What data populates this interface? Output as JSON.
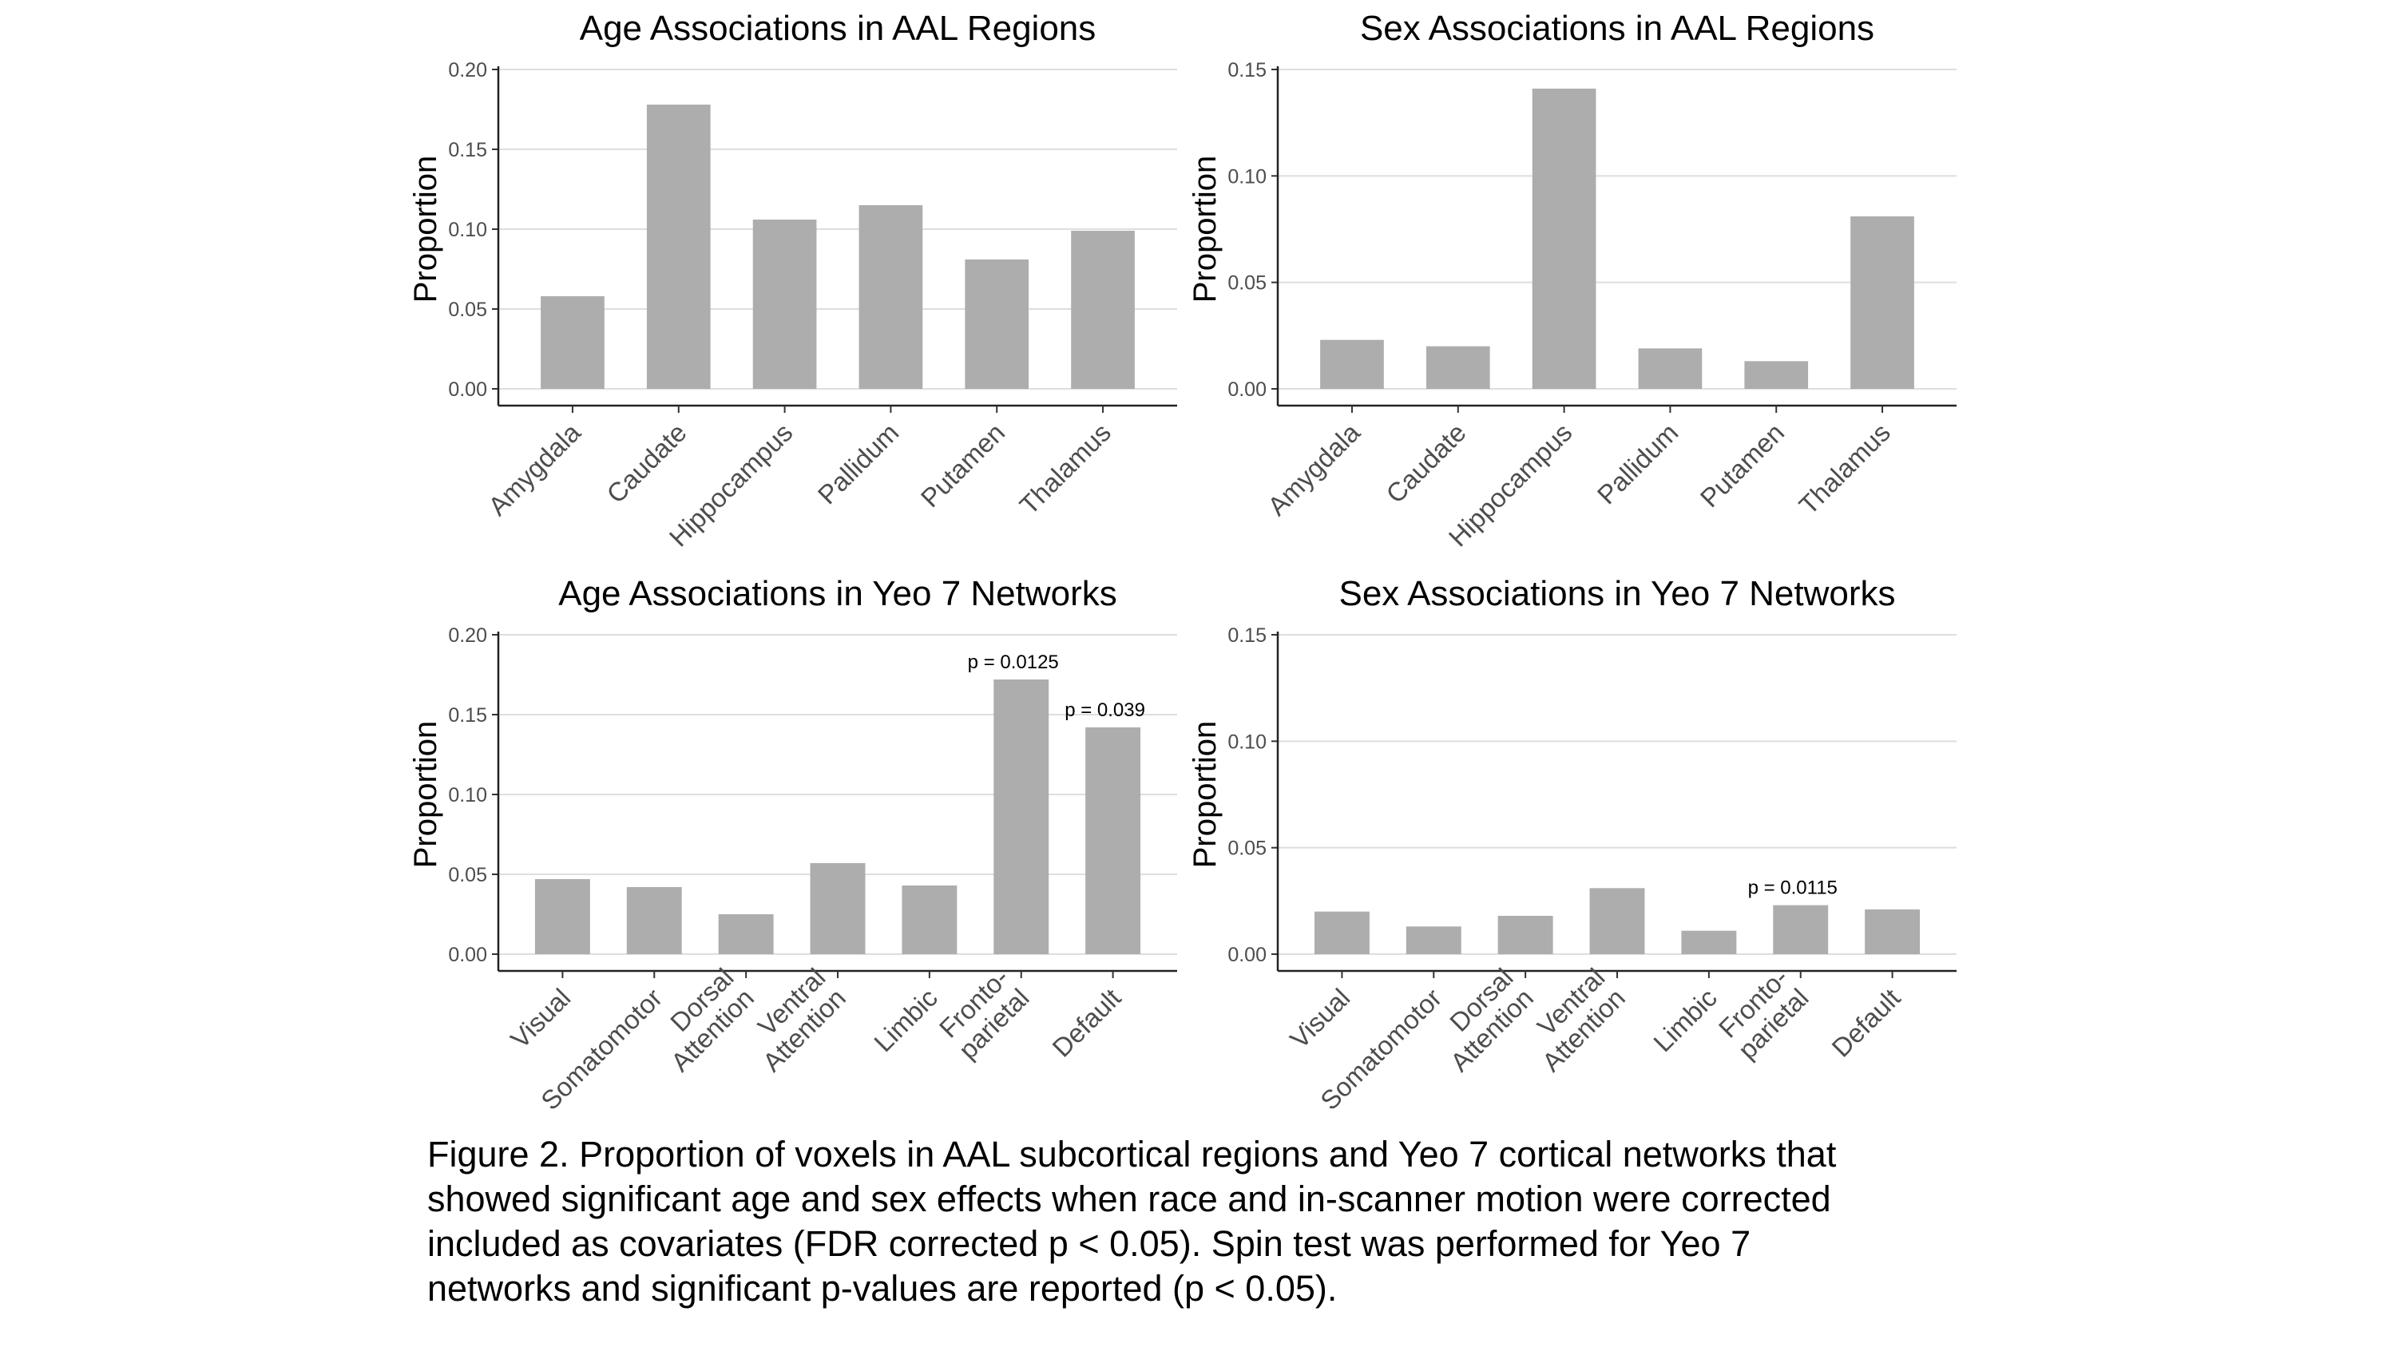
{
  "caption": {
    "lines": [
      "Figure 2. Proportion of voxels in AAL subcortical regions and Yeo 7 cortical networks that",
      "showed significant age and sex effects when race and in-scanner motion were corrected",
      "included as covariates (FDR corrected p < 0.05). Spin test was performed for Yeo 7",
      "networks and significant p-values are reported (p < 0.05)."
    ]
  },
  "chart_data": [
    {
      "type": "bar",
      "title": "Age Associations in AAL Regions",
      "xlabel": "",
      "ylabel": "Proportion",
      "ylim": [
        0,
        0.2
      ],
      "yticks": [
        "0.00",
        "0.05",
        "0.10",
        "0.15",
        "0.20"
      ],
      "categories": [
        [
          "Amygdala"
        ],
        [
          "Caudate"
        ],
        [
          "Hippocampus"
        ],
        [
          "Pallidum"
        ],
        [
          "Putamen"
        ],
        [
          "Thalamus"
        ]
      ],
      "values": [
        0.058,
        0.178,
        0.106,
        0.115,
        0.081,
        0.099
      ],
      "annotations": [
        "",
        "",
        "",
        "",
        "",
        ""
      ],
      "grid": true,
      "bar_color": "#adadad"
    },
    {
      "type": "bar",
      "title": "Sex Associations in AAL Regions",
      "xlabel": "",
      "ylabel": "Proportion",
      "ylim": [
        0,
        0.15
      ],
      "yticks": [
        "0.00",
        "0.05",
        "0.10",
        "0.15"
      ],
      "categories": [
        [
          "Amygdala"
        ],
        [
          "Caudate"
        ],
        [
          "Hippocampus"
        ],
        [
          "Pallidum"
        ],
        [
          "Putamen"
        ],
        [
          "Thalamus"
        ]
      ],
      "values": [
        0.023,
        0.02,
        0.141,
        0.019,
        0.013,
        0.081
      ],
      "annotations": [
        "",
        "",
        "",
        "",
        "",
        ""
      ],
      "grid": true,
      "bar_color": "#adadad"
    },
    {
      "type": "bar",
      "title": "Age Associations in Yeo 7 Networks",
      "xlabel": "",
      "ylabel": "Proportion",
      "ylim": [
        0,
        0.2
      ],
      "yticks": [
        "0.00",
        "0.05",
        "0.10",
        "0.15",
        "0.20"
      ],
      "categories": [
        [
          "Visual"
        ],
        [
          "Somatomotor"
        ],
        [
          "Dorsal",
          "Attention"
        ],
        [
          "Ventral",
          "Attention"
        ],
        [
          "Limbic"
        ],
        [
          "Fronto-",
          "parietal"
        ],
        [
          "Default"
        ]
      ],
      "values": [
        0.047,
        0.042,
        0.025,
        0.057,
        0.043,
        0.172,
        0.142
      ],
      "annotations": [
        "",
        "",
        "",
        "",
        "",
        "p = 0.0125",
        "p = 0.039"
      ],
      "grid": true,
      "bar_color": "#adadad"
    },
    {
      "type": "bar",
      "title": "Sex Associations in Yeo 7 Networks",
      "xlabel": "",
      "ylabel": "Proportion",
      "ylim": [
        0,
        0.15
      ],
      "yticks": [
        "0.00",
        "0.05",
        "0.10",
        "0.15"
      ],
      "categories": [
        [
          "Visual"
        ],
        [
          "Somatomotor"
        ],
        [
          "Dorsal",
          "Attention"
        ],
        [
          "Ventral",
          "Attention"
        ],
        [
          "Limbic"
        ],
        [
          "Fronto-",
          "parietal"
        ],
        [
          "Default"
        ]
      ],
      "values": [
        0.02,
        0.013,
        0.018,
        0.031,
        0.011,
        0.023,
        0.021
      ],
      "annotations": [
        "",
        "",
        "",
        "",
        "",
        "p = 0.0115",
        ""
      ],
      "grid": true,
      "bar_color": "#adadad"
    }
  ]
}
